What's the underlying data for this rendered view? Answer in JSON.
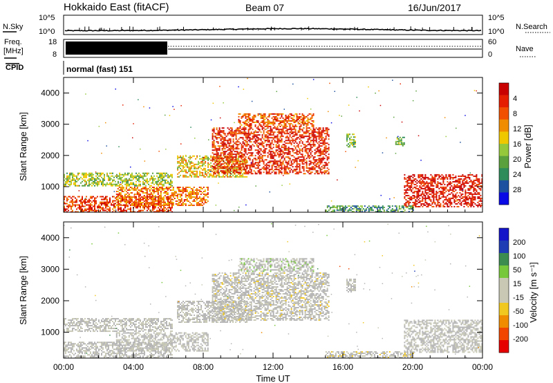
{
  "header": {
    "station": "Hokkaido East (fitACF)",
    "beam": "Beam 07",
    "date": "16/Jun/2017"
  },
  "top_panels": {
    "nsky_label": "N.Sky",
    "nsky_ticks": [
      "10^5",
      "10^0"
    ],
    "nsearch_label": "N.Search",
    "nsearch_ticks": [
      "10^5",
      "10^0"
    ],
    "freq_label": "Freq.",
    "freq_unit": "[MHz]",
    "freq_ticks": [
      "18",
      "8"
    ],
    "nave_label": "Nave",
    "nave_ticks": [
      "60",
      "0"
    ],
    "cpid_label": "CPID",
    "cpid_value": "normal (fast) 151"
  },
  "colors": {
    "power_scale": [
      "#0a0ae6",
      "#1e50a0",
      "#2d8c5a",
      "#5aa03c",
      "#96c83c",
      "#f0c800",
      "#f08c00",
      "#f05000",
      "#e61e00",
      "#c80000"
    ],
    "velocity_scale": [
      "#e60000",
      "#f04600",
      "#f08c00",
      "#f0c820",
      "#c8c8b4",
      "#c8c8b4",
      "#78c83c",
      "#3c8c50",
      "#1e3cb4",
      "#1414c8"
    ],
    "ground_scatter": "#b4b4b4"
  },
  "chart_data": [
    {
      "type": "heatmap",
      "title": "Power",
      "xlabel": "",
      "ylabel": "Slant Range [km]",
      "x_ticks": [
        "00:00",
        "04:00",
        "08:00",
        "12:00",
        "16:00",
        "20:00",
        "00:00"
      ],
      "xlim_hours": [
        0,
        24
      ],
      "ylim": [
        180,
        4500
      ],
      "y_ticks": [
        1000,
        2000,
        3000,
        4000
      ],
      "colorbar": {
        "label": "Power [dB]",
        "ticks": [
          "4",
          "8",
          "12",
          "16",
          "20",
          "24",
          "28"
        ],
        "range": [
          0,
          30
        ]
      },
      "echo_regions": [
        {
          "t": [
            0.0,
            6.2
          ],
          "r": [
            1050,
            1450
          ],
          "level": 0.45
        },
        {
          "t": [
            0.0,
            6.2
          ],
          "r": [
            200,
            700
          ],
          "level": 0.8
        },
        {
          "t": [
            3.0,
            8.3
          ],
          "r": [
            400,
            1000
          ],
          "level": 0.7
        },
        {
          "t": [
            6.5,
            10.5
          ],
          "r": [
            1300,
            2000
          ],
          "level": 0.55
        },
        {
          "t": [
            8.5,
            15.2
          ],
          "r": [
            1400,
            2900
          ],
          "level": 0.85
        },
        {
          "t": [
            10.0,
            14.3
          ],
          "r": [
            2950,
            3350
          ],
          "level": 0.75
        },
        {
          "t": [
            16.2,
            16.7
          ],
          "r": [
            2300,
            2700
          ],
          "level": 0.4
        },
        {
          "t": [
            19.0,
            19.5
          ],
          "r": [
            2300,
            2600
          ],
          "level": 0.4
        },
        {
          "t": [
            19.5,
            24.0
          ],
          "r": [
            350,
            1400
          ],
          "level": 0.9
        },
        {
          "t": [
            15.0,
            20.0
          ],
          "r": [
            200,
            400
          ],
          "level": 0.3
        }
      ]
    },
    {
      "type": "heatmap",
      "title": "Velocity",
      "xlabel": "Time UT",
      "ylabel": "Slant Range [km]",
      "x_ticks": [
        "00:00",
        "04:00",
        "08:00",
        "12:00",
        "16:00",
        "20:00",
        "00:00"
      ],
      "xlim_hours": [
        0,
        24
      ],
      "ylim": [
        180,
        4500
      ],
      "y_ticks": [
        1000,
        2000,
        3000,
        4000
      ],
      "colorbar": {
        "label": "Velocity [m s⁻¹]",
        "ticks": [
          "200",
          "100",
          "50",
          "15",
          "-15",
          "-50",
          "-100",
          "-200"
        ],
        "range": [
          -250,
          250
        ]
      },
      "echo_regions": [
        {
          "t": [
            0.0,
            6.2
          ],
          "r": [
            1050,
            1450
          ],
          "v": 0
        },
        {
          "t": [
            0.0,
            6.2
          ],
          "r": [
            200,
            700
          ],
          "v": 20
        },
        {
          "t": [
            3.0,
            8.3
          ],
          "r": [
            400,
            1000
          ],
          "v": 0
        },
        {
          "t": [
            6.5,
            10.5
          ],
          "r": [
            1300,
            2000
          ],
          "v": -10
        },
        {
          "t": [
            8.5,
            15.2
          ],
          "r": [
            1400,
            2900
          ],
          "v": -30
        },
        {
          "t": [
            10.0,
            14.3
          ],
          "r": [
            2950,
            3350
          ],
          "v": 40
        },
        {
          "t": [
            16.2,
            16.7
          ],
          "r": [
            2300,
            2700
          ],
          "v": 0
        },
        {
          "t": [
            19.5,
            24.0
          ],
          "r": [
            350,
            1400
          ],
          "v": 0
        },
        {
          "t": [
            15.0,
            20.0
          ],
          "r": [
            200,
            400
          ],
          "v": -40
        }
      ]
    }
  ]
}
